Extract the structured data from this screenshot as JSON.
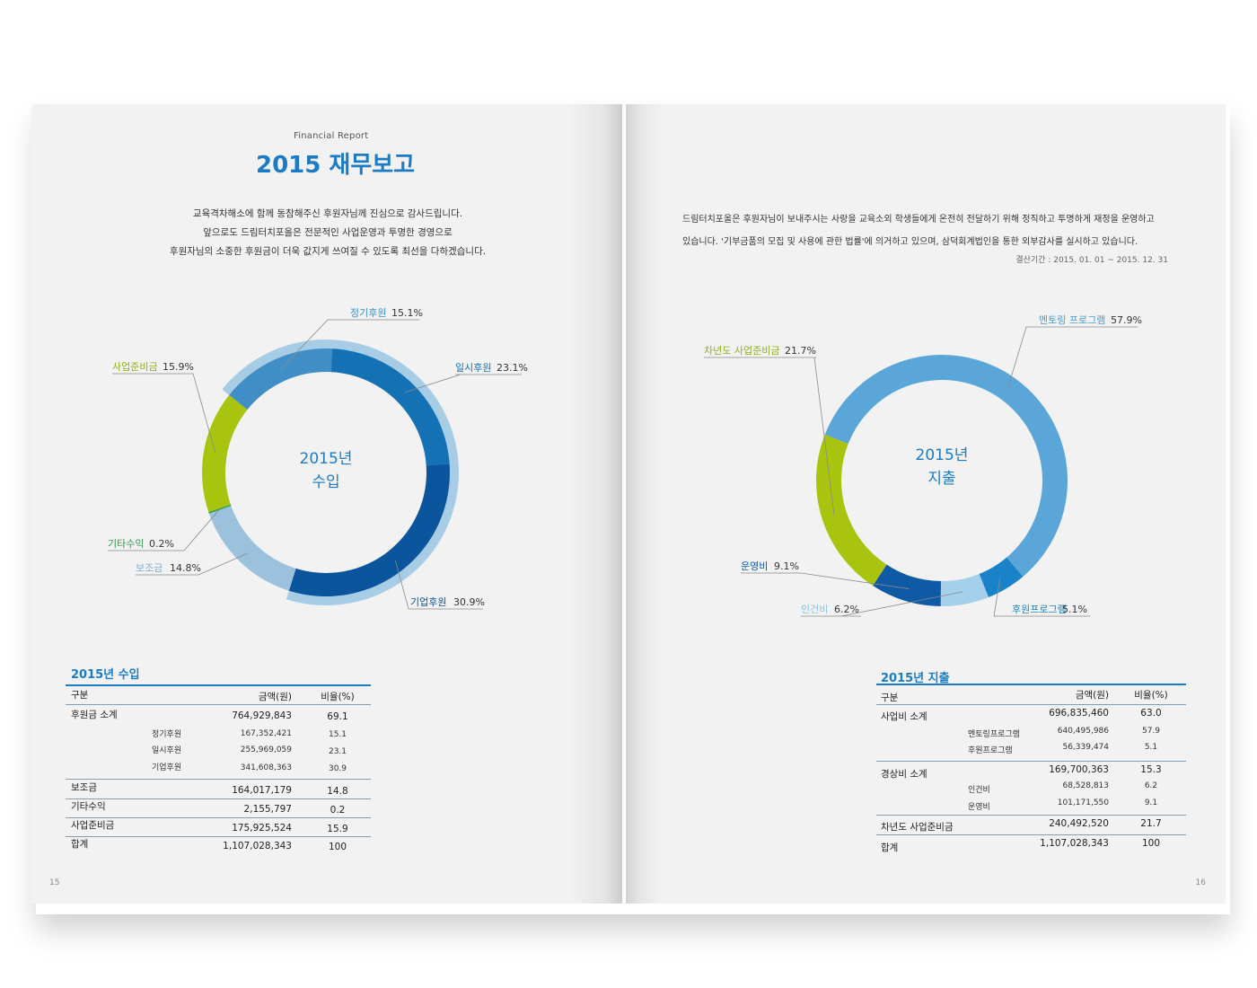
{
  "left_page": {
    "eyebrow": "Financial Report",
    "title": "2015 재무보고",
    "intro": [
      "교육격차해소에 함께 동참해주신 후원자님께 진심으로 감사드립니다.",
      "앞으로도 드림터치포올은 전문적인 사업운영과 투명한 경영으로",
      "후원자님의 소중한 후원금이 더욱 값지게 쓰여질 수 있도록 최선을 다하겠습니다."
    ],
    "page_number": "15",
    "center_label": [
      "2015년",
      "수입"
    ],
    "table": {
      "title": "2015년 수입",
      "headers": [
        "구분",
        "금액(원)",
        "비율(%)"
      ],
      "rows": [
        {
          "label": "후원금 소계",
          "amount": "764,929,843",
          "ratio": "69.1"
        },
        {
          "label": "정기후원",
          "amount": "167,352,421",
          "ratio": "15.1"
        },
        {
          "label": "일시후원",
          "amount": "255,969,059",
          "ratio": "23.1"
        },
        {
          "label": "기업후원",
          "amount": "341,608,363",
          "ratio": "30.9"
        },
        {
          "label": "보조금",
          "amount": "164,017,179",
          "ratio": "14.8"
        },
        {
          "label": "기타수익",
          "amount": "2,155,797",
          "ratio": "0.2"
        },
        {
          "label": "사업준비금",
          "amount": "175,925,524",
          "ratio": "15.9"
        },
        {
          "label": "합계",
          "amount": "1,107,028,343",
          "ratio": "100"
        }
      ]
    }
  },
  "right_page": {
    "intro": [
      "드림터치포올은 후원자님이 보내주시는 사랑을 교육소외 학생들에게 온전히 전달하기 위해 정직하고 투명하게 재정을 운영하고",
      "있습니다. '기부금품의 모집 및 사용에 관한 법률'에 의거하고 있으며, 삼덕회계법인을 통한 외부감사를 실시하고 있습니다."
    ],
    "period": "결산기간 : 2015. 01. 01 ~ 2015. 12. 31",
    "page_number": "16",
    "center_label": [
      "2015년",
      "지출"
    ],
    "table": {
      "title": "2015년 지출",
      "headers": [
        "구분",
        "금액(원)",
        "비율(%)"
      ],
      "rows": [
        {
          "label": "사업비 소계",
          "amount": "696,835,460",
          "ratio": "63.0"
        },
        {
          "label": "멘토링프로그램",
          "amount": "640,495,986",
          "ratio": "57.9"
        },
        {
          "label": "후원프로그램",
          "amount": "56,339,474",
          "ratio": "5.1"
        },
        {
          "label": "경상비 소계",
          "amount": "169,700,363",
          "ratio": "15.3"
        },
        {
          "label": "인건비",
          "amount": "68,528,813",
          "ratio": "6.2"
        },
        {
          "label": "운영비",
          "amount": "101,171,550",
          "ratio": "9.1"
        },
        {
          "label": "차년도 사업준비금",
          "amount": "240,492,520",
          "ratio": "21.7"
        },
        {
          "label": "합계",
          "amount": "1,107,028,343",
          "ratio": "100"
        }
      ]
    }
  },
  "chart_data": [
    {
      "type": "pie",
      "variant": "donut",
      "center_text": [
        "2015년",
        "수입"
      ],
      "slices": [
        {
          "label": "정기후원",
          "value": 15.1,
          "value_text": "15.1%",
          "color": "#3f8fc6",
          "label_color": "#3f8fc6"
        },
        {
          "label": "일시후원",
          "value": 23.1,
          "value_text": "23.1%",
          "color": "#1472b4",
          "label_color": "#1472b4"
        },
        {
          "label": "기업후원",
          "value": 30.9,
          "value_text": "30.9%",
          "color": "#0a559b",
          "label_color": "#0a559b"
        },
        {
          "label": "보조금",
          "value": 14.8,
          "value_text": "14.8%",
          "color": "#9cc1dc",
          "label_color": "#7eaed2"
        },
        {
          "label": "기타수익",
          "value": 0.2,
          "value_text": "0.2%",
          "color": "#2e9b4a",
          "label_color": "#2e9b4a"
        },
        {
          "label": "사업준비금",
          "value": 15.9,
          "value_text": "15.9%",
          "color": "#a9c40f",
          "label_color": "#8db116"
        }
      ],
      "group_highlight": {
        "slices": [
          "정기후원",
          "일시후원",
          "기업후원"
        ],
        "color": "#a7cce6"
      }
    },
    {
      "type": "pie",
      "variant": "donut",
      "center_text": [
        "2015년",
        "지출"
      ],
      "slices": [
        {
          "label": "멘토링 프로그램",
          "value": 57.9,
          "value_text": "57.9%",
          "color": "#5aa6d8",
          "label_color": "#4a9ad2"
        },
        {
          "label": "후원프로그램",
          "value": 5.1,
          "value_text": "5.1%",
          "color": "#1a82c8",
          "label_color": "#1a82c8"
        },
        {
          "label": "인건비",
          "value": 6.2,
          "value_text": "6.2%",
          "color": "#a5d0ec",
          "label_color": "#8cc2e6"
        },
        {
          "label": "운영비",
          "value": 9.1,
          "value_text": "9.1%",
          "color": "#0e5aa4",
          "label_color": "#0e5aa4"
        },
        {
          "label": "차년도 사업준비금",
          "value": 21.7,
          "value_text": "21.7%",
          "color": "#a9c40f",
          "label_color": "#8db116"
        }
      ]
    }
  ]
}
